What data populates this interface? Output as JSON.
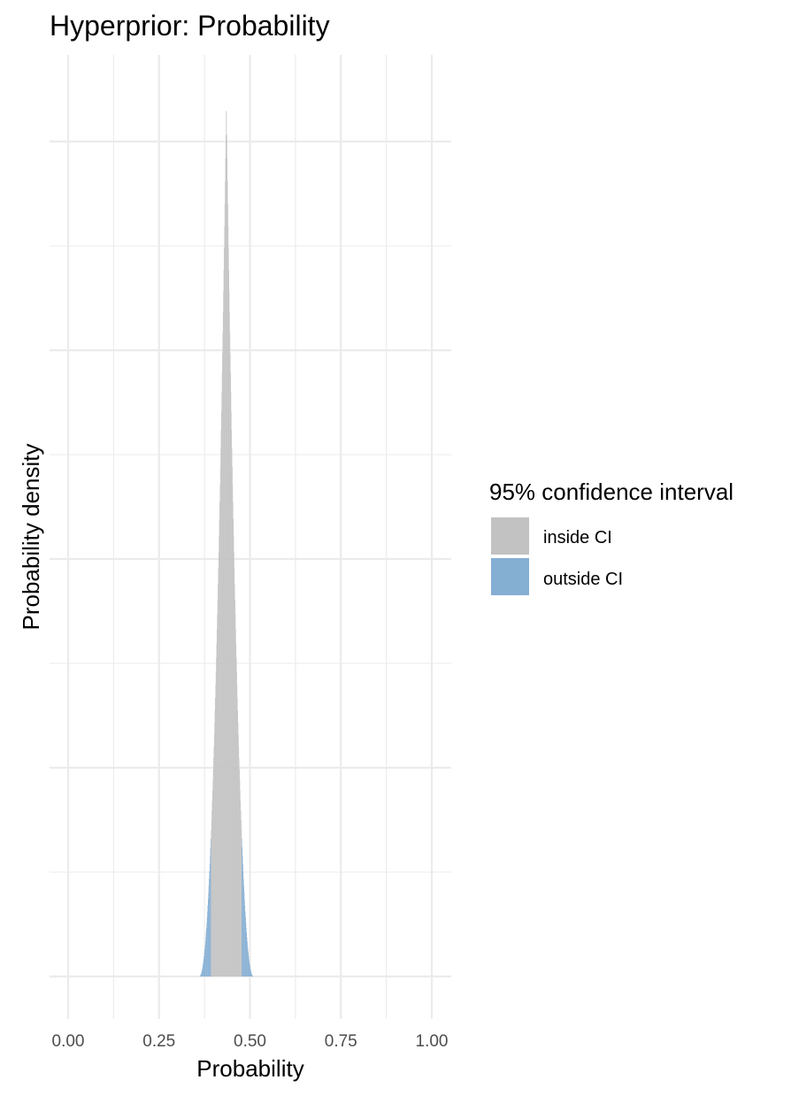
{
  "chart_data": {
    "type": "area",
    "title": "Hyperprior: Probability",
    "xlabel": "Probability",
    "ylabel": "Probability density",
    "xlim": [
      -0.05,
      1.03
    ],
    "x_ticks": [
      0.0,
      0.25,
      0.5,
      0.75,
      1.0
    ],
    "x_tick_labels": [
      "0.00",
      "0.25",
      "0.50",
      "0.75",
      "1.00"
    ],
    "y_tick_labels_shown": false,
    "grid": true,
    "distribution": {
      "mode": 0.435,
      "support_min": 0.36,
      "support_max": 0.51,
      "ci_lower": 0.393,
      "ci_upper": 0.477
    },
    "series": [
      {
        "name": "inside CI",
        "color": "#c2c2c2"
      },
      {
        "name": "outside CI",
        "color": "#85aed3"
      }
    ],
    "legend": {
      "title": "95% confidence interval",
      "position": "right"
    }
  }
}
